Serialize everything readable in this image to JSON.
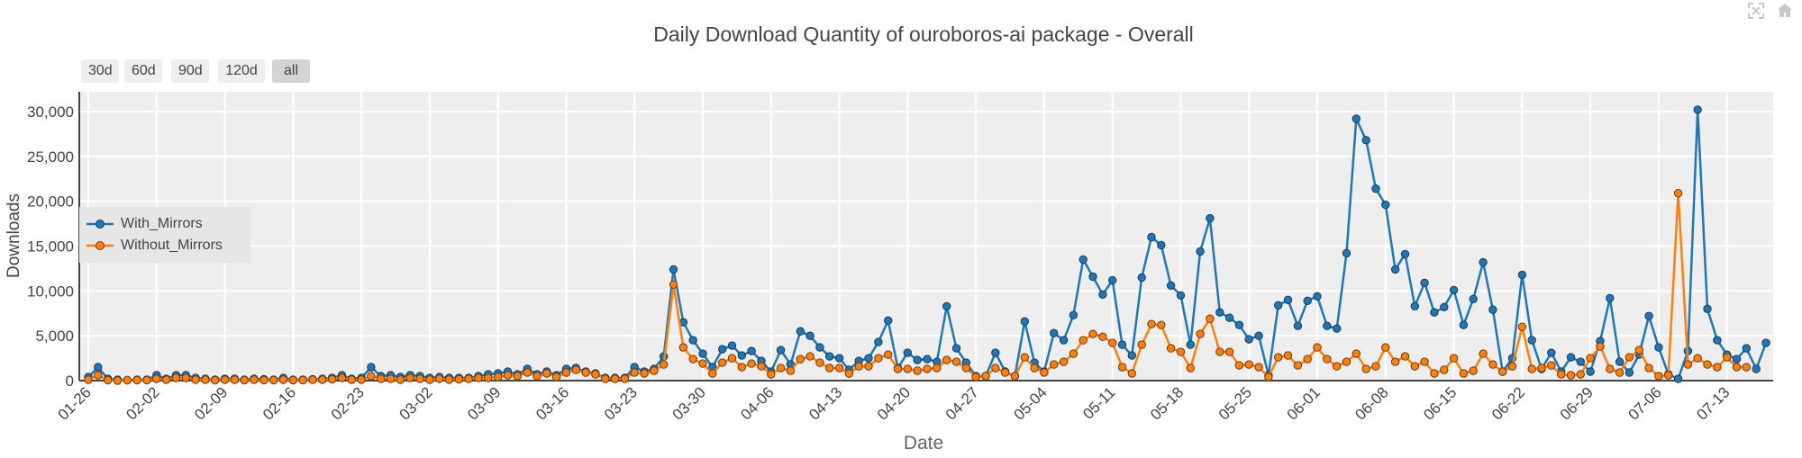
{
  "chart_data": {
    "type": "line",
    "title": "Daily Download Quantity of ouroboros-ai package - Overall",
    "xlabel": "Date",
    "ylabel": "Downloads",
    "ylim": [
      0,
      32000
    ],
    "yticks": [
      0,
      5000,
      10000,
      15000,
      20000,
      25000,
      30000
    ],
    "ytick_labels": [
      "0",
      "5,000",
      "10,000",
      "15,000",
      "20,000",
      "25,000",
      "30,000"
    ],
    "xtick_labels": [
      "01-26",
      "02-02",
      "02-09",
      "02-16",
      "02-23",
      "03-02",
      "03-09",
      "03-16",
      "03-23",
      "03-30",
      "04-06",
      "04-13",
      "04-20",
      "04-27",
      "05-04",
      "05-11",
      "05-18",
      "05-25",
      "06-01",
      "06-08",
      "06-15",
      "06-22",
      "06-29",
      "07-06",
      "07-13"
    ],
    "x_start": "01-26",
    "grid": true,
    "legend_position": "left",
    "plot_bgcolor": "#eeeeee",
    "series": [
      {
        "name": "With_Mirrors",
        "color": "#1f77b4",
        "values": [
          400,
          1500,
          200,
          100,
          50,
          100,
          100,
          600,
          200,
          600,
          600,
          300,
          200,
          100,
          200,
          200,
          100,
          200,
          150,
          100,
          300,
          100,
          100,
          150,
          200,
          300,
          600,
          200,
          300,
          1500,
          500,
          600,
          400,
          600,
          500,
          300,
          400,
          300,
          300,
          300,
          500,
          700,
          800,
          1000,
          700,
          1300,
          700,
          1000,
          600,
          1300,
          1400,
          1000,
          800,
          300,
          300,
          300,
          1500,
          1000,
          1300,
          2700,
          12400,
          6500,
          4500,
          3000,
          1500,
          3500,
          3900,
          2800,
          3300,
          2200,
          1000,
          3400,
          1800,
          5500,
          5000,
          3700,
          2700,
          2500,
          1200,
          2200,
          2500,
          4300,
          6700,
          1400,
          3100,
          2300,
          2400,
          2100,
          8300,
          3600,
          2000,
          500,
          500,
          3100,
          1000,
          500,
          6600,
          2000,
          1000,
          5300,
          4500,
          7300,
          13500,
          11600,
          9600,
          11200,
          4000,
          2800,
          11500,
          16000,
          15100,
          10600,
          9500,
          4000,
          14400,
          18100,
          7600,
          7000,
          6200,
          4600,
          5000,
          600,
          8400,
          9000,
          6100,
          8900,
          9400,
          6100,
          5800,
          14200,
          29200,
          26800,
          21400,
          19600,
          12400,
          14100,
          8300,
          10900,
          7600,
          8200,
          10100,
          6200,
          9100,
          13200,
          7900,
          1000,
          2500,
          11800,
          4500,
          1300,
          3100,
          1000,
          2600,
          2100,
          1000,
          4400,
          9200,
          2100,
          900,
          2900,
          7200,
          3700,
          700,
          200,
          3300,
          30200,
          8000,
          4500,
          2900,
          2400,
          3600,
          1300,
          4200
        ]
      },
      {
        "name": "Without_Mirrors",
        "color": "#ff7f0e",
        "values": [
          100,
          600,
          50,
          0,
          50,
          50,
          50,
          200,
          100,
          300,
          300,
          100,
          100,
          50,
          100,
          100,
          50,
          100,
          50,
          50,
          100,
          50,
          50,
          100,
          100,
          150,
          300,
          100,
          100,
          500,
          200,
          200,
          100,
          300,
          200,
          100,
          200,
          100,
          150,
          200,
          300,
          300,
          400,
          600,
          500,
          900,
          500,
          800,
          400,
          900,
          1200,
          900,
          700,
          200,
          200,
          200,
          900,
          800,
          1100,
          1800,
          10700,
          3700,
          2400,
          1900,
          800,
          2000,
          2500,
          1500,
          1900,
          1600,
          700,
          1400,
          1100,
          2400,
          2700,
          2000,
          1400,
          1400,
          800,
          1600,
          1600,
          2500,
          2900,
          1300,
          1300,
          1100,
          1300,
          1400,
          2300,
          2100,
          1400,
          400,
          500,
          1400,
          900,
          500,
          2600,
          1400,
          900,
          1800,
          2100,
          3000,
          4500,
          5200,
          4900,
          4200,
          1500,
          800,
          4000,
          6300,
          6200,
          3600,
          3200,
          1400,
          5200,
          6900,
          3200,
          3200,
          1700,
          1800,
          1500,
          400,
          2600,
          2800,
          1700,
          2400,
          3700,
          2400,
          1600,
          2100,
          3000,
          1300,
          1600,
          3700,
          2100,
          2700,
          1600,
          2100,
          800,
          1200,
          2500,
          800,
          1100,
          3000,
          1800,
          1000,
          1600,
          6000,
          1300,
          1400,
          1700,
          700,
          600,
          700,
          2500,
          3800,
          1300,
          900,
          2600,
          3400,
          1400,
          500,
          600,
          20900,
          1800,
          2500,
          1800,
          1500,
          2600,
          1500,
          1500
        ]
      }
    ]
  },
  "range_buttons": [
    {
      "label": "30d",
      "active": false
    },
    {
      "label": "60d",
      "active": false
    },
    {
      "label": "90d",
      "active": false
    },
    {
      "label": "120d",
      "active": false
    },
    {
      "label": "all",
      "active": true
    }
  ],
  "modebar": {
    "icons": [
      "autoscale-icon",
      "reset-axes-icon"
    ]
  }
}
